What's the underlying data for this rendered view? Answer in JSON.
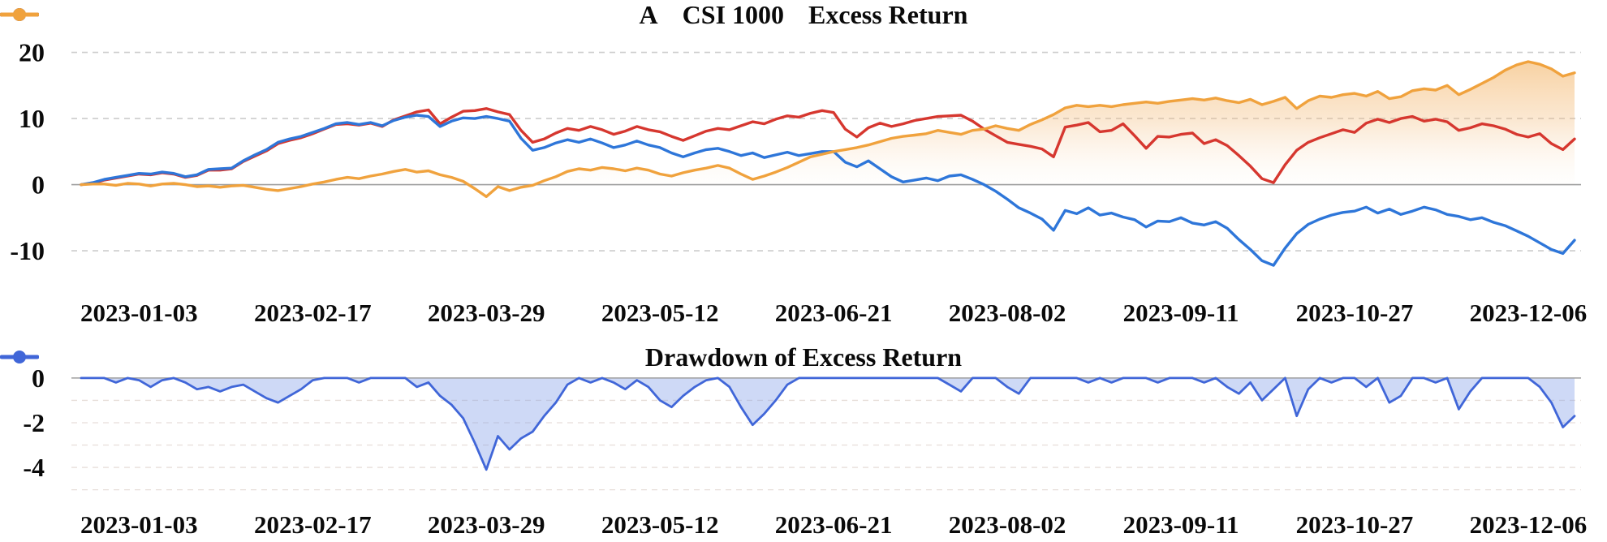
{
  "page": {
    "background": "#ffffff",
    "accent_colors": {
      "series_a": "#d6372f",
      "csi1000": "#2e76d9",
      "excess": "#f0a23d",
      "drawdown": "#4066d8",
      "grid_dash": "#cccccc",
      "grid_faint": "#e7ded9",
      "zero_line": "#9e9e9e"
    }
  },
  "chart_data": [
    {
      "type": "line",
      "title": "",
      "legend_position": "top-center",
      "grid": "horizontal-dashed",
      "ylim": [
        -16.0,
        22.4
      ],
      "grid_values": [
        20,
        10,
        -10
      ],
      "yticks": [
        {
          "v": 20,
          "label": "20"
        },
        {
          "v": 10,
          "label": "10"
        },
        {
          "v": 0,
          "label": "0"
        },
        {
          "v": -10,
          "label": "-10"
        }
      ],
      "x_tick_labels": [
        "2023-01-03",
        "2023-02-17",
        "2023-03-29",
        "2023-05-12",
        "2023-06-21",
        "2023-08-02",
        "2023-09-11",
        "2023-10-27",
        "2023-12-06"
      ],
      "x_tick_indices": [
        5,
        20,
        35,
        50,
        65,
        80,
        95,
        110,
        125
      ],
      "series": [
        {
          "name": "A",
          "color": "#d6372f",
          "fill": "none",
          "values": [
            0,
            0.2,
            0.7,
            1.0,
            1.3,
            1.6,
            1.5,
            1.8,
            1.6,
            1.1,
            1.4,
            2.2,
            2.2,
            2.4,
            3.5,
            4.3,
            5.1,
            6.2,
            6.7,
            7.1,
            7.7,
            8.4,
            9.1,
            9.2,
            9.0,
            9.3,
            8.8,
            9.8,
            10.4,
            11.0,
            11.3,
            9.2,
            10.2,
            11.1,
            11.2,
            11.5,
            11.0,
            10.6,
            8.2,
            6.4,
            6.9,
            7.8,
            8.5,
            8.2,
            8.8,
            8.3,
            7.6,
            8.1,
            8.8,
            8.3,
            8.0,
            7.3,
            6.7,
            7.4,
            8.1,
            8.5,
            8.3,
            8.9,
            9.5,
            9.2,
            9.9,
            10.4,
            10.2,
            10.8,
            11.2,
            10.9,
            8.4,
            7.2,
            8.6,
            9.3,
            8.8,
            9.2,
            9.7,
            10.0,
            10.3,
            10.4,
            10.5,
            9.6,
            8.4,
            7.4,
            6.4,
            6.1,
            5.8,
            5.4,
            4.2,
            8.7,
            9.0,
            9.4,
            8.0,
            8.2,
            9.2,
            7.4,
            5.5,
            7.3,
            7.2,
            7.6,
            7.8,
            6.2,
            6.8,
            5.9,
            4.4,
            2.8,
            0.9,
            0.3,
            3.0,
            5.2,
            6.4,
            7.1,
            7.7,
            8.3,
            7.9,
            9.3,
            9.9,
            9.4,
            10.0,
            10.3,
            9.6,
            9.9,
            9.5,
            8.2,
            8.6,
            9.2,
            8.9,
            8.4,
            7.6,
            7.2,
            7.7,
            6.2,
            5.3,
            6.9
          ]
        },
        {
          "name": "CSI 1000",
          "color": "#2e76d9",
          "fill": "none",
          "values": [
            0,
            0.3,
            0.8,
            1.1,
            1.4,
            1.7,
            1.6,
            1.9,
            1.7,
            1.2,
            1.5,
            2.3,
            2.4,
            2.5,
            3.6,
            4.5,
            5.3,
            6.4,
            6.9,
            7.3,
            7.9,
            8.5,
            9.2,
            9.4,
            9.1,
            9.4,
            8.9,
            9.7,
            10.2,
            10.5,
            10.3,
            8.8,
            9.6,
            10.1,
            10.0,
            10.3,
            10.0,
            9.6,
            7.0,
            5.2,
            5.6,
            6.3,
            6.8,
            6.4,
            6.9,
            6.3,
            5.6,
            6.0,
            6.6,
            6.0,
            5.6,
            4.8,
            4.2,
            4.8,
            5.3,
            5.5,
            5.0,
            4.4,
            4.8,
            4.1,
            4.5,
            4.9,
            4.4,
            4.7,
            5.0,
            5.0,
            3.4,
            2.7,
            3.6,
            2.4,
            1.2,
            0.4,
            0.7,
            1.0,
            0.6,
            1.3,
            1.5,
            0.8,
            0.0,
            -1.0,
            -2.2,
            -3.5,
            -4.3,
            -5.2,
            -6.9,
            -3.9,
            -4.4,
            -3.5,
            -4.6,
            -4.3,
            -4.9,
            -5.3,
            -6.4,
            -5.5,
            -5.6,
            -5.0,
            -5.8,
            -6.1,
            -5.6,
            -6.6,
            -8.3,
            -9.8,
            -11.5,
            -12.2,
            -9.6,
            -7.4,
            -6.0,
            -5.2,
            -4.6,
            -4.2,
            -4.0,
            -3.4,
            -4.3,
            -3.7,
            -4.5,
            -4.0,
            -3.4,
            -3.8,
            -4.5,
            -4.8,
            -5.3,
            -5.0,
            -5.7,
            -6.2,
            -7.0,
            -7.8,
            -8.8,
            -9.8,
            -10.4,
            -8.4
          ]
        },
        {
          "name": "Excess Return",
          "color": "#f0a23d",
          "fill": "orange-gradient-to-zero",
          "values": [
            0,
            0.1,
            0.1,
            -0.1,
            0.2,
            0.1,
            -0.2,
            0.1,
            0.2,
            0.0,
            -0.3,
            -0.2,
            -0.4,
            -0.2,
            -0.1,
            -0.4,
            -0.7,
            -0.9,
            -0.6,
            -0.3,
            0.1,
            0.4,
            0.8,
            1.1,
            0.9,
            1.3,
            1.6,
            2.0,
            2.3,
            1.9,
            2.1,
            1.5,
            1.1,
            0.5,
            -0.6,
            -1.8,
            -0.3,
            -0.9,
            -0.4,
            -0.1,
            0.6,
            1.2,
            2.0,
            2.4,
            2.2,
            2.6,
            2.4,
            2.1,
            2.5,
            2.2,
            1.6,
            1.3,
            1.8,
            2.2,
            2.5,
            2.9,
            2.5,
            1.6,
            0.8,
            1.3,
            1.9,
            2.6,
            3.4,
            4.2,
            4.6,
            5.0,
            5.3,
            5.6,
            6.0,
            6.5,
            7.0,
            7.3,
            7.5,
            7.7,
            8.2,
            7.9,
            7.6,
            8.2,
            8.4,
            8.9,
            8.5,
            8.2,
            9.1,
            9.8,
            10.6,
            11.6,
            12.0,
            11.8,
            12.0,
            11.8,
            12.1,
            12.3,
            12.5,
            12.3,
            12.6,
            12.8,
            13.0,
            12.8,
            13.1,
            12.7,
            12.4,
            12.9,
            12.1,
            12.6,
            13.2,
            11.5,
            12.7,
            13.4,
            13.2,
            13.6,
            13.8,
            13.4,
            14.1,
            13.0,
            13.3,
            14.2,
            14.5,
            14.3,
            15.0,
            13.6,
            14.4,
            15.3,
            16.2,
            17.3,
            18.1,
            18.6,
            18.2,
            17.5,
            16.4,
            16.9
          ]
        }
      ]
    },
    {
      "type": "line",
      "title": "",
      "legend_position": "top-center",
      "grid": "horizontal-dashed",
      "ylim": [
        -5.45,
        0.25
      ],
      "grid_values": [
        -1,
        -2,
        -3,
        -4,
        -5
      ],
      "yticks": [
        {
          "v": 0,
          "label": "0"
        },
        {
          "v": -2,
          "label": "-2"
        },
        {
          "v": -4,
          "label": "-4"
        }
      ],
      "x_tick_labels": [
        "2023-01-03",
        "2023-02-17",
        "2023-03-29",
        "2023-05-12",
        "2023-06-21",
        "2023-08-02",
        "2023-09-11",
        "2023-10-27",
        "2023-12-06"
      ],
      "x_tick_indices": [
        5,
        20,
        35,
        50,
        65,
        80,
        95,
        110,
        125
      ],
      "series": [
        {
          "name": "Drawdown of Excess Return",
          "color": "#4066d8",
          "fill": "blue-gradient-to-zero",
          "values": [
            0,
            0,
            0,
            -0.2,
            0,
            -0.1,
            -0.4,
            -0.1,
            0,
            -0.2,
            -0.5,
            -0.4,
            -0.6,
            -0.4,
            -0.3,
            -0.6,
            -0.9,
            -1.1,
            -0.8,
            -0.5,
            -0.1,
            0,
            0,
            0,
            -0.2,
            0,
            0,
            0,
            0,
            -0.4,
            -0.2,
            -0.8,
            -1.2,
            -1.8,
            -2.9,
            -4.1,
            -2.6,
            -3.2,
            -2.7,
            -2.4,
            -1.7,
            -1.1,
            -0.3,
            0,
            -0.2,
            0,
            -0.2,
            -0.5,
            -0.1,
            -0.4,
            -1.0,
            -1.3,
            -0.8,
            -0.4,
            -0.1,
            0,
            -0.4,
            -1.3,
            -2.1,
            -1.6,
            -1.0,
            -0.3,
            0,
            0,
            0,
            0,
            0,
            0,
            0,
            0,
            0,
            0,
            0,
            0,
            0,
            -0.3,
            -0.6,
            0,
            0,
            0,
            -0.4,
            -0.7,
            0,
            0,
            0,
            0,
            0,
            -0.2,
            0,
            -0.2,
            0,
            0,
            0,
            -0.2,
            0,
            0,
            0,
            -0.2,
            0,
            -0.4,
            -0.7,
            -0.2,
            -1.0,
            -0.5,
            0,
            -1.7,
            -0.5,
            0,
            -0.2,
            0,
            0,
            -0.4,
            0,
            -1.1,
            -0.8,
            0,
            0,
            -0.2,
            0,
            -1.4,
            -0.6,
            0,
            0,
            0,
            0,
            0,
            -0.4,
            -1.1,
            -2.2,
            -1.7
          ]
        }
      ]
    }
  ]
}
